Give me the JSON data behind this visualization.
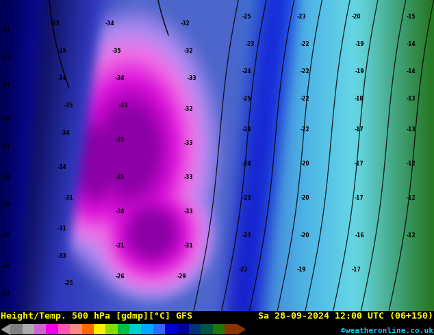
{
  "title_left": "Height/Temp. 500 hPa [gdmp][°C] GFS",
  "title_right": "Sa 28-09-2024 12:00 UTC (06+150)",
  "credit": "©weatheronline.co.uk",
  "colorbar_levels": [
    -54,
    -48,
    -42,
    -38,
    -30,
    -24,
    -18,
    -12,
    -6,
    0,
    6,
    12,
    18,
    24,
    30,
    36,
    42,
    48,
    54
  ],
  "colorbar_colors": [
    "#808080",
    "#aaaaaa",
    "#cc66cc",
    "#ee00ee",
    "#ff55bb",
    "#ff8888",
    "#ff6600",
    "#ffee00",
    "#88dd00",
    "#00bb44",
    "#00cccc",
    "#00aaff",
    "#3366ff",
    "#0000cc",
    "#000099",
    "#003377",
    "#005544",
    "#227700",
    "#883300"
  ],
  "footer_bg": "#000000",
  "title_color": "#ffff00",
  "credit_color": "#00ccff",
  "title_fontsize": 9.5,
  "credit_fontsize": 8,
  "colorbar_tick_fontsize": 6.5,
  "map_region": {
    "colors": {
      "deep_blue_dark": "#0a0a6e",
      "mid_blue": "#2244cc",
      "blue": "#3366dd",
      "light_blue": "#66aaee",
      "cyan_blue": "#44ccee",
      "cyan": "#33dddd",
      "light_cyan": "#88ddff",
      "pink_light": "#ffaacc",
      "pink": "#ff66bb",
      "magenta": "#ee00ee",
      "deep_magenta": "#cc00cc",
      "dark_magenta": "#880088",
      "green_dark": "#116611",
      "green": "#228822",
      "green_mid": "#337733"
    }
  }
}
